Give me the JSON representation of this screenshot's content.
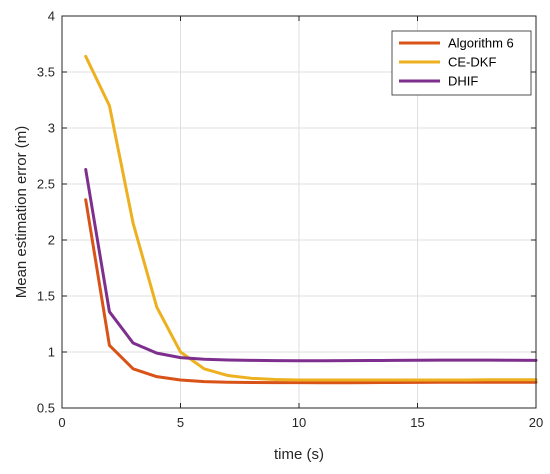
{
  "chart_data": {
    "type": "line",
    "xlabel": "time (s)",
    "ylabel": "Mean estimation error (m)",
    "xlim": [
      0,
      20
    ],
    "ylim": [
      0.5,
      4
    ],
    "xticks": [
      0,
      5,
      10,
      15,
      20
    ],
    "xtick_labels": [
      "0",
      "5",
      "10",
      "15",
      "20"
    ],
    "yticks": [
      0.5,
      1,
      1.5,
      2,
      2.5,
      3,
      3.5,
      4
    ],
    "ytick_labels": [
      "0.5",
      "1",
      "1.5",
      "2",
      "2.5",
      "3",
      "3.5",
      "4"
    ],
    "grid": true,
    "legend_position": "top-right",
    "x": [
      1,
      2,
      3,
      4,
      5,
      6,
      7,
      8,
      9,
      10,
      11,
      12,
      13,
      14,
      15,
      16,
      17,
      18,
      19,
      20
    ],
    "series": [
      {
        "name": "Algorithm 6",
        "color": "#D95319",
        "values": [
          2.36,
          1.06,
          0.85,
          0.78,
          0.75,
          0.735,
          0.73,
          0.728,
          0.727,
          0.727,
          0.726,
          0.726,
          0.727,
          0.728,
          0.729,
          0.73,
          0.73,
          0.73,
          0.73,
          0.73
        ]
      },
      {
        "name": "CE-DKF",
        "color": "#EDB120",
        "values": [
          3.64,
          3.2,
          2.15,
          1.4,
          1.0,
          0.85,
          0.79,
          0.765,
          0.755,
          0.75,
          0.75,
          0.75,
          0.75,
          0.75,
          0.75,
          0.75,
          0.75,
          0.752,
          0.752,
          0.752
        ]
      },
      {
        "name": "DHIF",
        "color": "#7E2F8E",
        "values": [
          2.63,
          1.36,
          1.08,
          0.99,
          0.95,
          0.935,
          0.928,
          0.925,
          0.923,
          0.922,
          0.922,
          0.923,
          0.924,
          0.925,
          0.926,
          0.927,
          0.927,
          0.927,
          0.926,
          0.925
        ]
      }
    ]
  }
}
